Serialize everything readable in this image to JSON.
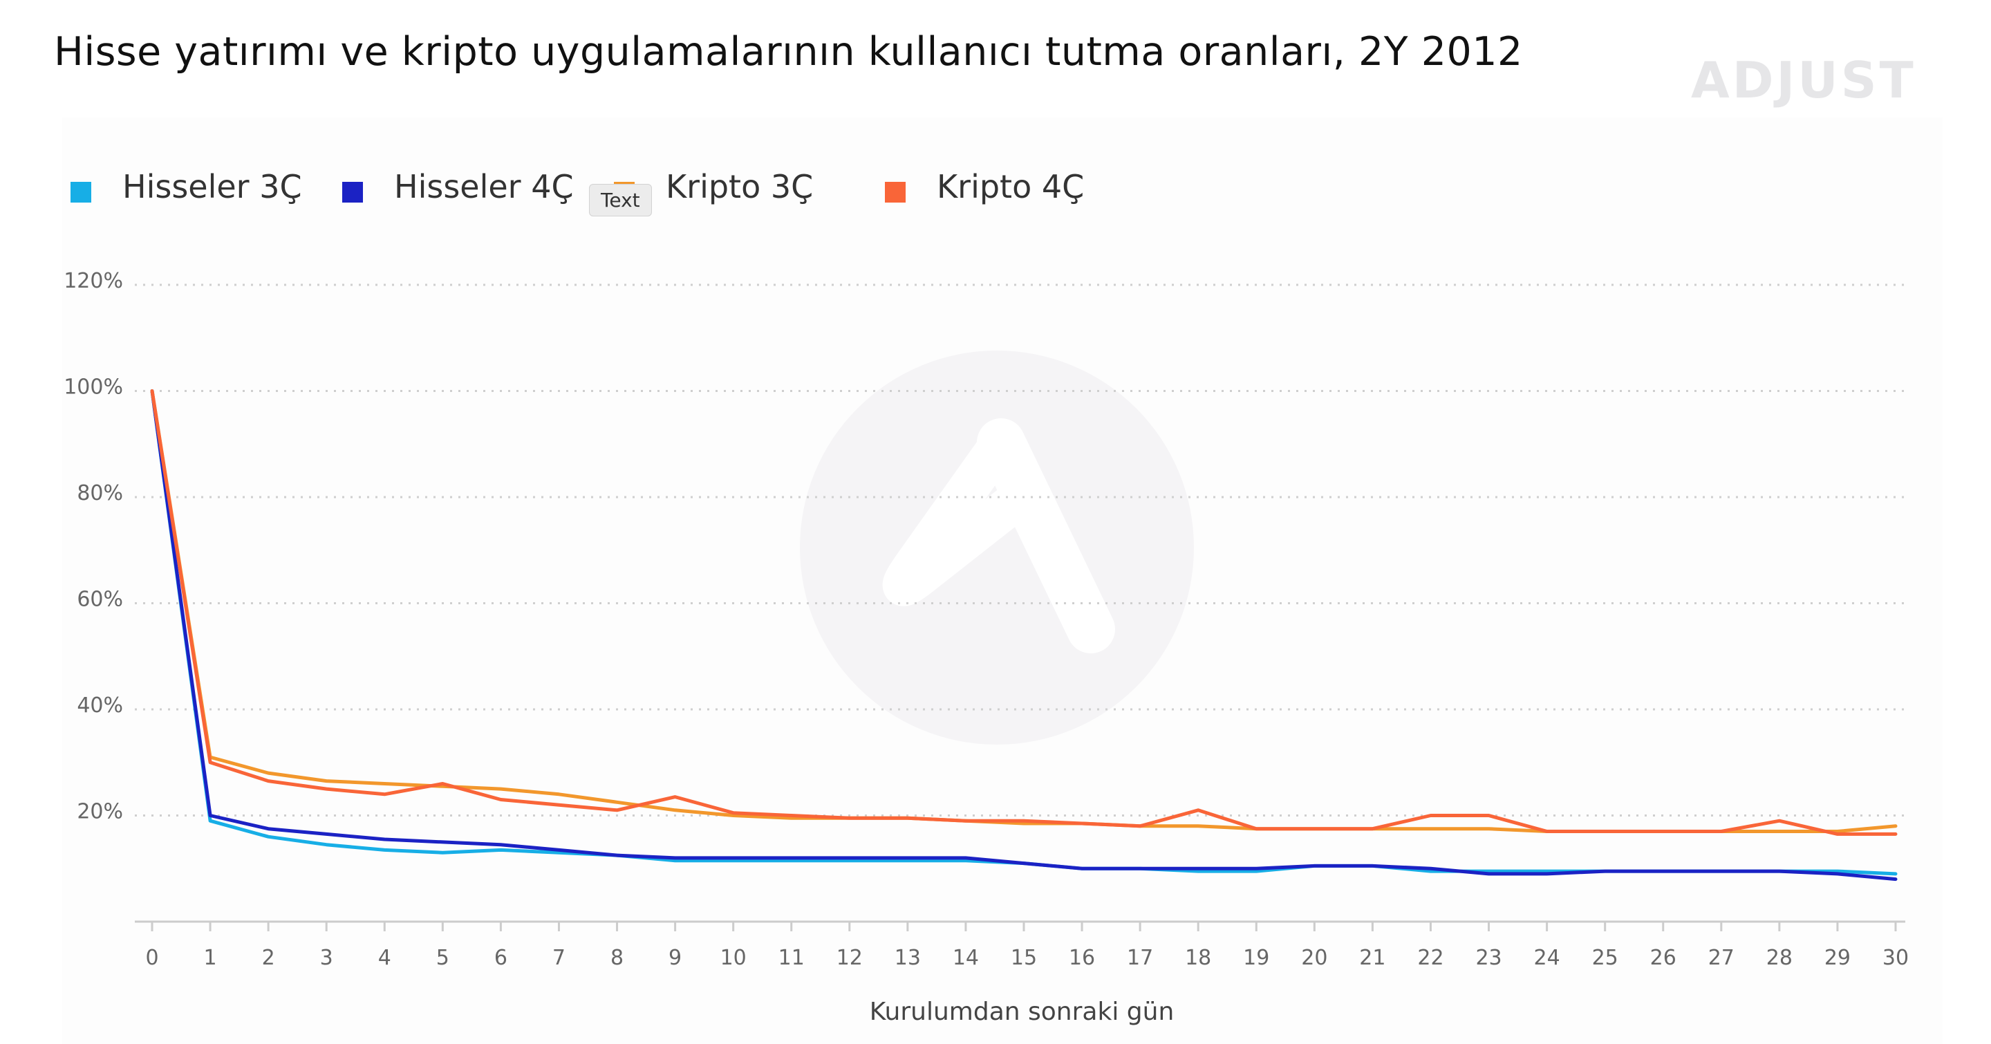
{
  "title": "Hisse yatırımı ve kripto uygulamalarının kullanıcı tutma oranları, 2Y 2012",
  "brand": "ADJUST",
  "tooltip": "Text",
  "colors": {
    "background": "#ffffff",
    "grid": "#cfcfcf",
    "axis": "#cccccc"
  },
  "chart_data": {
    "type": "line",
    "title": "Hisse yatırımı ve kripto uygulamalarının kullanıcı tutma oranları, 2Y 2012",
    "xlabel": "Kurulumdan sonraki gün",
    "ylabel": "",
    "x": [
      0,
      1,
      2,
      3,
      4,
      5,
      6,
      7,
      8,
      9,
      10,
      11,
      12,
      13,
      14,
      15,
      16,
      17,
      18,
      19,
      20,
      21,
      22,
      23,
      24,
      25,
      26,
      27,
      28,
      29,
      30
    ],
    "ylim": [
      0,
      120
    ],
    "yticks": [
      20,
      40,
      60,
      80,
      100,
      120
    ],
    "ytick_labels": [
      "20%",
      "40%",
      "60%",
      "80%",
      "100%",
      "120%"
    ],
    "grid": true,
    "legend_position": "top-left",
    "series": [
      {
        "name": "Hisseler 3Ç",
        "color": "#17aee6",
        "values": [
          100,
          19,
          16,
          14.5,
          13.5,
          13,
          13.5,
          13,
          12.5,
          11.5,
          11.5,
          11.5,
          11.5,
          11.5,
          11.5,
          11,
          10,
          10,
          9.5,
          9.5,
          10.5,
          10.5,
          9.5,
          9.5,
          9.5,
          9.5,
          9.5,
          9.5,
          9.5,
          9.5,
          9
        ]
      },
      {
        "name": "Hisseler 4Ç",
        "color": "#1b22c4",
        "values": [
          100,
          20,
          17.5,
          16.5,
          15.5,
          15,
          14.5,
          13.5,
          12.5,
          12,
          12,
          12,
          12,
          12,
          12,
          11,
          10,
          10,
          10,
          10,
          10.5,
          10.5,
          10,
          9,
          9,
          9.5,
          9.5,
          9.5,
          9.5,
          9,
          8
        ]
      },
      {
        "name": "Kripto 3Ç",
        "color": "#f2972c",
        "values": [
          100,
          31,
          28,
          26.5,
          26,
          25.5,
          25,
          24,
          22.5,
          21,
          20,
          19.5,
          19.5,
          19.5,
          19,
          18.5,
          18.5,
          18,
          18,
          17.5,
          17.5,
          17.5,
          17.5,
          17.5,
          17,
          17,
          17,
          17,
          17,
          17,
          18
        ]
      },
      {
        "name": "Kripto 4Ç",
        "color": "#f96538",
        "values": [
          100,
          30,
          26.5,
          25,
          24,
          26,
          23,
          22,
          21,
          23.5,
          20.5,
          20,
          19.5,
          19.5,
          19,
          19,
          18.5,
          18,
          21,
          17.5,
          17.5,
          17.5,
          20,
          20,
          17,
          17,
          17,
          17,
          19,
          16.5,
          16.5
        ]
      }
    ]
  }
}
